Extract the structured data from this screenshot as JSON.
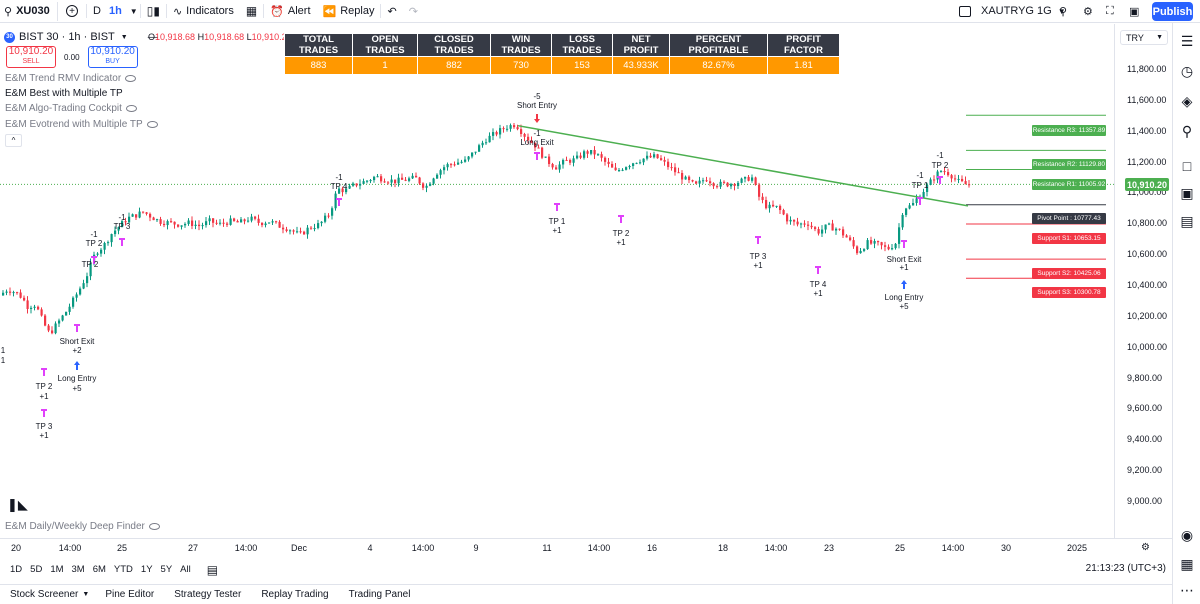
{
  "toolbar": {
    "symbol": "XU030",
    "add": "+",
    "interval_d": "D",
    "interval_1h": "1h",
    "indicators": "Indicators",
    "alert": "Alert",
    "replay": "Replay",
    "compare_symbol": "XAUTRYG 1G",
    "publish": "Publish"
  },
  "legend": {
    "logo": "30",
    "title": "BIST 30 · 1h · BIST",
    "ohlc_o": "O",
    "ohlc_o_v": "10,918.68",
    "ohlc_h": "H",
    "ohlc_h_v": "10,918.68",
    "ohlc_l": "L",
    "ohlc_l_v": "10,910.20",
    "sell_price": "10,910.20",
    "sell_label": "SELL",
    "spread": "0.00",
    "buy_price": "10,910.20",
    "buy_label": "BUY",
    "indicators": [
      "E&M Trend RMV Indicator",
      "E&M Best with Multiple TP",
      "E&M Algo-Trading Cockpit",
      "E&M Evotrend with Multiple TP"
    ],
    "collapse": "^"
  },
  "stats": {
    "headers": [
      "TOTAL TRADES",
      "OPEN TRADES",
      "CLOSED TRADES",
      "WIN TRADES",
      "LOSS TRADES",
      "NET PROFIT",
      "PERCENT PROFITABLE",
      "PROFIT FACTOR"
    ],
    "values": [
      "883",
      "1",
      "882",
      "730",
      "153",
      "43.933K",
      "82.67%",
      "1.81"
    ]
  },
  "price_axis": {
    "currency": "TRY",
    "ticks": [
      "11,800.00",
      "11,600.00",
      "11,400.00",
      "11,200.00",
      "11,000.00",
      "10,800.00",
      "10,600.00",
      "10,400.00",
      "10,200.00",
      "10,000.00",
      "9,800.00",
      "9,600.00",
      "9,400.00",
      "9,200.00",
      "9,000.00"
    ],
    "current": "10,910.20"
  },
  "levels": {
    "r3": "Resistance R3: 11357.89",
    "r2": "Resistance R2: 11129.80",
    "r1": "Resistance R1: 11005.92",
    "pivot": "Pivot Point : 10777.43",
    "s1": "Support S1: 10653.15",
    "s2": "Support S2: 10425.06",
    "s3": "Support S3: 10300.78"
  },
  "annotations": {
    "short_entry_qty": "-5",
    "short_entry": "Short Entry",
    "long_exit_qty": "-1",
    "long_exit": "Long Exit",
    "tp1_a": "TP 1",
    "tp1_a_q": "+1",
    "tp2_a": "TP 2",
    "tp2_a_q": "+1",
    "tp3_a": "TP 3",
    "tp3_a_q": "+1",
    "tp4_a": "TP 4",
    "tp4_a_q": "+1",
    "short_exit_r": "Short Exit",
    "short_exit_r_q": "+1",
    "long_entry_r": "Long Entry",
    "long_entry_r_q": "+5",
    "tp1_r_q": "-1",
    "tp1_r": "TP 1",
    "tp2_r_q": "-1",
    "tp2_r": "TP 2",
    "tp4_l_q": "-1",
    "tp4_l": "TP 4",
    "tp2_l_q": "-1",
    "tp2_l": "TP 2",
    "tp3_l_q": "-1",
    "tp3_l": "TP 3",
    "tp2_b": "TP 2",
    "tp2_b_q": "+1",
    "tp3_b": "TP 3",
    "tp3_b_q": "+1",
    "short_exit_l": "Short Exit",
    "short_exit_l_q": "+2",
    "long_entry_l": "Long Entry",
    "long_entry_l_q": "+5",
    "one_a": "1",
    "one_b": "1",
    "tp2_lw": "TP 2"
  },
  "finder": "E&M Daily/Weekly Deep Finder",
  "time_axis": [
    "20",
    "14:00",
    "25",
    "27",
    "14:00",
    "Dec",
    "4",
    "14:00",
    "9",
    "11",
    "14:00",
    "16",
    "18",
    "14:00",
    "23",
    "25",
    "14:00",
    "30",
    "2025"
  ],
  "ranges": [
    "1D",
    "5D",
    "1M",
    "3M",
    "6M",
    "YTD",
    "1Y",
    "5Y",
    "All"
  ],
  "clock": "21:13:23 (UTC+3)",
  "bottom_tabs": [
    "Stock Screener",
    "Pine Editor",
    "Strategy Tester",
    "Replay Trading",
    "Trading Panel"
  ],
  "colors": {
    "up": "#089981",
    "down": "#f23645",
    "trend": "#4caf50",
    "accent": "#2962ff",
    "stats": "#ff9800"
  },
  "chart_data": {
    "type": "candlestick",
    "ylim": [
      8950,
      11950
    ],
    "anchors": [
      [
        0,
        10190
      ],
      [
        8,
        10230
      ],
      [
        16,
        10210
      ],
      [
        22,
        10180
      ],
      [
        28,
        10120
      ],
      [
        36,
        10130
      ],
      [
        44,
        10010
      ],
      [
        50,
        9940
      ],
      [
        58,
        10010
      ],
      [
        66,
        10080
      ],
      [
        72,
        10140
      ],
      [
        80,
        10230
      ],
      [
        88,
        10330
      ],
      [
        96,
        10470
      ],
      [
        104,
        10510
      ],
      [
        112,
        10590
      ],
      [
        120,
        10640
      ],
      [
        128,
        10690
      ],
      [
        136,
        10710
      ],
      [
        144,
        10730
      ],
      [
        152,
        10700
      ],
      [
        160,
        10670
      ],
      [
        170,
        10660
      ],
      [
        180,
        10650
      ],
      [
        190,
        10660
      ],
      [
        200,
        10640
      ],
      [
        210,
        10670
      ],
      [
        220,
        10650
      ],
      [
        230,
        10670
      ],
      [
        240,
        10660
      ],
      [
        250,
        10690
      ],
      [
        260,
        10660
      ],
      [
        270,
        10670
      ],
      [
        280,
        10640
      ],
      [
        290,
        10620
      ],
      [
        300,
        10580
      ],
      [
        310,
        10630
      ],
      [
        320,
        10650
      ],
      [
        330,
        10720
      ],
      [
        338,
        10880
      ],
      [
        346,
        10870
      ],
      [
        356,
        10910
      ],
      [
        366,
        10930
      ],
      [
        376,
        10960
      ],
      [
        386,
        10940
      ],
      [
        396,
        10930
      ],
      [
        406,
        10940
      ],
      [
        416,
        10950
      ],
      [
        426,
        10890
      ],
      [
        436,
        10980
      ],
      [
        446,
        11030
      ],
      [
        456,
        11050
      ],
      [
        466,
        11060
      ],
      [
        476,
        11130
      ],
      [
        486,
        11200
      ],
      [
        496,
        11240
      ],
      [
        506,
        11280
      ],
      [
        516,
        11300
      ],
      [
        526,
        11220
      ],
      [
        536,
        11160
      ],
      [
        546,
        11070
      ],
      [
        556,
        11020
      ],
      [
        566,
        11060
      ],
      [
        576,
        11070
      ],
      [
        586,
        11120
      ],
      [
        596,
        11110
      ],
      [
        606,
        11050
      ],
      [
        616,
        10990
      ],
      [
        626,
        11030
      ],
      [
        636,
        11060
      ],
      [
        646,
        11080
      ],
      [
        656,
        11090
      ],
      [
        666,
        11040
      ],
      [
        676,
        10990
      ],
      [
        686,
        10940
      ],
      [
        696,
        10900
      ],
      [
        706,
        10950
      ],
      [
        716,
        10910
      ],
      [
        726,
        10910
      ],
      [
        736,
        10920
      ],
      [
        746,
        10940
      ],
      [
        752,
        10960
      ],
      [
        760,
        10820
      ],
      [
        768,
        10760
      ],
      [
        778,
        10760
      ],
      [
        788,
        10680
      ],
      [
        798,
        10650
      ],
      [
        808,
        10660
      ],
      [
        818,
        10600
      ],
      [
        828,
        10640
      ],
      [
        838,
        10620
      ],
      [
        848,
        10560
      ],
      [
        858,
        10470
      ],
      [
        868,
        10530
      ],
      [
        878,
        10520
      ],
      [
        888,
        10490
      ],
      [
        896,
        10530
      ],
      [
        904,
        10760
      ],
      [
        912,
        10770
      ],
      [
        920,
        10840
      ],
      [
        928,
        10900
      ],
      [
        936,
        10970
      ],
      [
        942,
        11000
      ],
      [
        950,
        10980
      ],
      [
        958,
        10930
      ],
      [
        966,
        10910
      ]
    ],
    "trendline": [
      [
        516,
        11290
      ],
      [
        966,
        10770
      ]
    ]
  }
}
